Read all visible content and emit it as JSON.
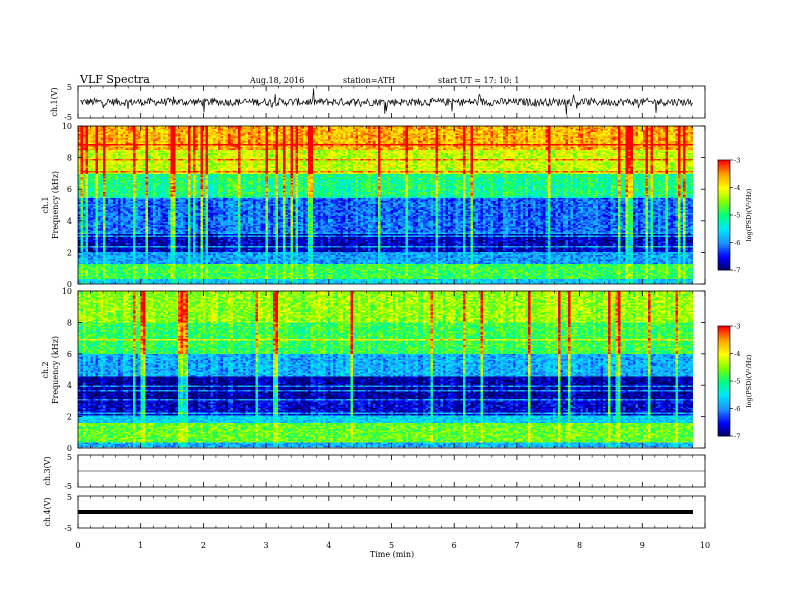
{
  "header": {
    "title": "VLF  Spectra",
    "date": "Aug.18, 2016",
    "station": "station=ATH",
    "start_ut": "start  UT  =   17: 10: 1"
  },
  "colorbar": {
    "label": "log(PSD)(V²/Hz)",
    "ticks": [
      "-3",
      "-4",
      "-5",
      "-6",
      "-7"
    ],
    "colors": [
      "#ff0000",
      "#ffa500",
      "#ffff00",
      "#7fff00",
      "#00ff7f",
      "#00e5ff",
      "#1e90ff",
      "#0000ff",
      "#000060"
    ]
  },
  "chart_data": [
    {
      "type": "line",
      "panel": "ch1-waveform",
      "ylabel": "ch.1(V)",
      "ylim": [
        -5,
        5
      ],
      "ytick_labels": [
        "5",
        "-5"
      ],
      "xlim": [
        0,
        10
      ],
      "baseline": 0,
      "noise_amplitude": 1.2
    },
    {
      "type": "heatmap",
      "panel": "ch1-spectrogram",
      "ylabel_channel": "ch.1",
      "ylabel": "Frequency  (kHz)",
      "ylim": [
        0,
        10
      ],
      "ytick_labels": [
        "0",
        "2",
        "4",
        "6",
        "8",
        "10"
      ],
      "xlim": [
        0,
        10
      ],
      "zlim": [
        -7,
        -3
      ],
      "zlabel": "log(PSD)(V²/Hz)"
    },
    {
      "type": "heatmap",
      "panel": "ch2-spectrogram",
      "ylabel_channel": "ch.2",
      "ylabel": "Frequency  (kHz)",
      "ylim": [
        0,
        10
      ],
      "ytick_labels": [
        "0",
        "2",
        "4",
        "6",
        "8",
        "10"
      ],
      "xlim": [
        0,
        10
      ],
      "zlim": [
        -7,
        -3
      ],
      "zlabel": "log(PSD)(V²/Hz)"
    },
    {
      "type": "line",
      "panel": "ch3-waveform",
      "ylabel": "ch.3(V)",
      "ylim": [
        -5,
        5
      ],
      "ytick_labels": [
        "5",
        "-5"
      ],
      "xlim": [
        0,
        10
      ],
      "baseline": 0
    },
    {
      "type": "line",
      "panel": "ch4-waveform",
      "ylabel": "ch.4(V)",
      "ylim": [
        -5,
        5
      ],
      "ytick_labels": [
        "5",
        "-5"
      ],
      "xlim": [
        0,
        10
      ],
      "baseline": 0
    }
  ],
  "xaxis": {
    "label": "Time  (min)",
    "tick_labels": [
      "0",
      "1",
      "2",
      "3",
      "4",
      "5",
      "6",
      "7",
      "8",
      "9",
      "10"
    ]
  }
}
